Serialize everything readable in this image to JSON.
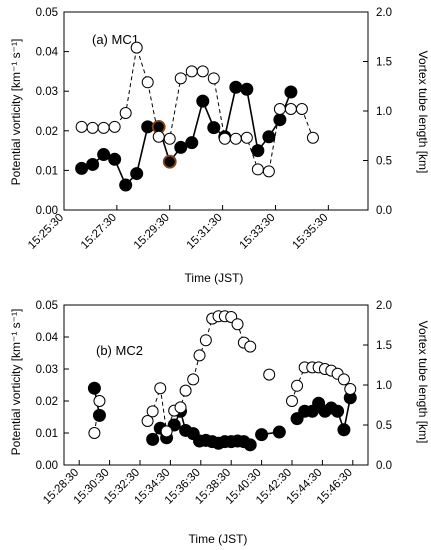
{
  "chart_data": [
    {
      "type": "line",
      "panel_label": "(a) MC1",
      "xlabel": "Time (JST)",
      "ylabel_left": "Potential vorticity [km⁻¹ s⁻¹]",
      "ylabel_right": "Vortex tube length [km]",
      "x_tick_labels": [
        "15:25:30",
        "15:27:30",
        "15:29:30",
        "15:31:30",
        "15:33:30",
        "15:35:30"
      ],
      "x_ticks_sec": [
        0,
        120,
        240,
        360,
        480,
        600
      ],
      "xlim_sec": [
        0,
        690
      ],
      "y_left_ticks": [
        "0.00",
        "0.01",
        "0.02",
        "0.03",
        "0.04",
        "0.05"
      ],
      "ylim_left": [
        0,
        0.05
      ],
      "y_right_ticks": [
        "0.0",
        "0.5",
        "1.0",
        "1.5",
        "2.0"
      ],
      "ylim_right": [
        0,
        2.0
      ],
      "series": [
        {
          "axis": "left",
          "style": "filled",
          "x_sec": [
            40,
            65,
            90,
            115,
            140,
            165,
            190,
            215,
            240,
            265,
            290,
            315,
            340,
            365,
            390,
            415,
            440,
            465,
            490,
            515,
            540,
            565,
            590,
            615,
            640
          ],
          "values": [
            0.0105,
            0.0115,
            0.014,
            0.0128,
            0.0063,
            0.0092,
            0.021,
            0.021,
            0.0122,
            0.0158,
            0.017,
            0.0275,
            0.0208,
            0.0185,
            0.031,
            0.0305,
            0.015,
            0.0185,
            0.0228,
            0.0298,
            null,
            null,
            null,
            null,
            null
          ],
          "highlight_colors": [
            "#000000",
            "#000000",
            "#000000",
            "#000000",
            "#000000",
            "#000000",
            "#000000",
            "#8B4513",
            "#8B4513",
            "#000000",
            "#000000",
            "#000000",
            "#000000",
            "#000000",
            "#000000",
            "#000000",
            "#000000",
            "#000000",
            "#000000",
            "#000000"
          ]
        },
        {
          "axis": "right",
          "style": "open",
          "x_sec": [
            40,
            65,
            90,
            115,
            140,
            165,
            190,
            215,
            240,
            265,
            290,
            315,
            340,
            365,
            390,
            415,
            440,
            465,
            490,
            515,
            540,
            565
          ],
          "values": [
            0.84,
            0.83,
            0.83,
            0.84,
            0.98,
            1.64,
            1.29,
            0.74,
            0.72,
            1.33,
            1.4,
            1.4,
            1.33,
            0.72,
            0.72,
            0.73,
            0.41,
            0.39,
            1.02,
            1.02,
            1.02,
            0.73
          ]
        }
      ]
    },
    {
      "type": "line",
      "panel_label": "(b) MC2",
      "xlabel": "Time (JST)",
      "ylabel_left": "Potential vorticity [km⁻¹ s⁻¹]",
      "ylabel_right": "Vortex tube length [km]",
      "x_tick_labels": [
        "15:28:30",
        "15:30:30",
        "15:32:30",
        "15:34:30",
        "15:36:30",
        "15:38:30",
        "15:40:30",
        "15:42:30",
        "15:44:30",
        "15:46:30"
      ],
      "x_ticks_sec": [
        0,
        120,
        240,
        360,
        480,
        600,
        720,
        840,
        960,
        1080
      ],
      "xlim_sec": [
        -60,
        1140
      ],
      "y_left_ticks": [
        "0.00",
        "0.01",
        "0.02",
        "0.03",
        "0.04",
        "0.05"
      ],
      "ylim_left": [
        0,
        0.05
      ],
      "y_right_ticks": [
        "0.0",
        "0.5",
        "1.0",
        "1.5",
        "2.0"
      ],
      "ylim_right": [
        0,
        2.0
      ],
      "series": [
        {
          "axis": "left",
          "style": "filled",
          "segments": [
            {
              "x_sec": [
                60,
                80
              ],
              "values": [
                0.024,
                0.0155
              ]
            },
            {
              "x_sec": [
                290,
                320,
                345,
                375,
                400,
                420,
                450,
                475,
                500,
                525,
                550,
                575,
                600,
                625,
                650,
                675
              ],
              "values": [
                0.008,
                0.0115,
                0.0085,
                0.0125,
                0.0168,
                0.0108,
                0.0098,
                0.0075,
                0.0077,
                0.0073,
                0.0068,
                0.0073,
                0.0073,
                0.0075,
                0.0073,
                0.0063
              ]
            },
            {
              "x_sec": [
                720,
                790
              ],
              "values": [
                0.0095,
                0.0103
              ]
            },
            {
              "x_sec": [
                860,
                890,
                920,
                945,
                970,
                995,
                1020,
                1045,
                1070
              ],
              "values": [
                0.0145,
                0.0168,
                0.0168,
                0.0193,
                0.0168,
                0.0178,
                0.0168,
                0.011,
                0.021
              ]
            }
          ]
        },
        {
          "axis": "right",
          "style": "open",
          "segments": [
            {
              "x_sec": [
                60,
                80
              ],
              "values": [
                0.4,
                0.8
              ]
            },
            {
              "x_sec": [
                270,
                290,
                320,
                345,
                375,
                400,
                420,
                450,
                475,
                500,
                525,
                550,
                575,
                600,
                625,
                650,
                675
              ],
              "values": [
                0.55,
                0.67,
                0.96,
                0.42,
                0.68,
                0.72,
                0.93,
                1.07,
                1.37,
                1.56,
                1.83,
                1.86,
                1.86,
                1.85,
                1.76,
                1.53,
                1.48
              ]
            },
            {
              "x_sec": [
                750
              ],
              "values": [
                1.13
              ]
            },
            {
              "x_sec": [
                840,
                860,
                890,
                920,
                945,
                970,
                995,
                1020,
                1045,
                1070
              ],
              "values": [
                0.8,
                0.99,
                1.22,
                1.22,
                1.22,
                1.2,
                1.18,
                1.14,
                1.07,
                0.95
              ]
            }
          ]
        }
      ]
    }
  ]
}
